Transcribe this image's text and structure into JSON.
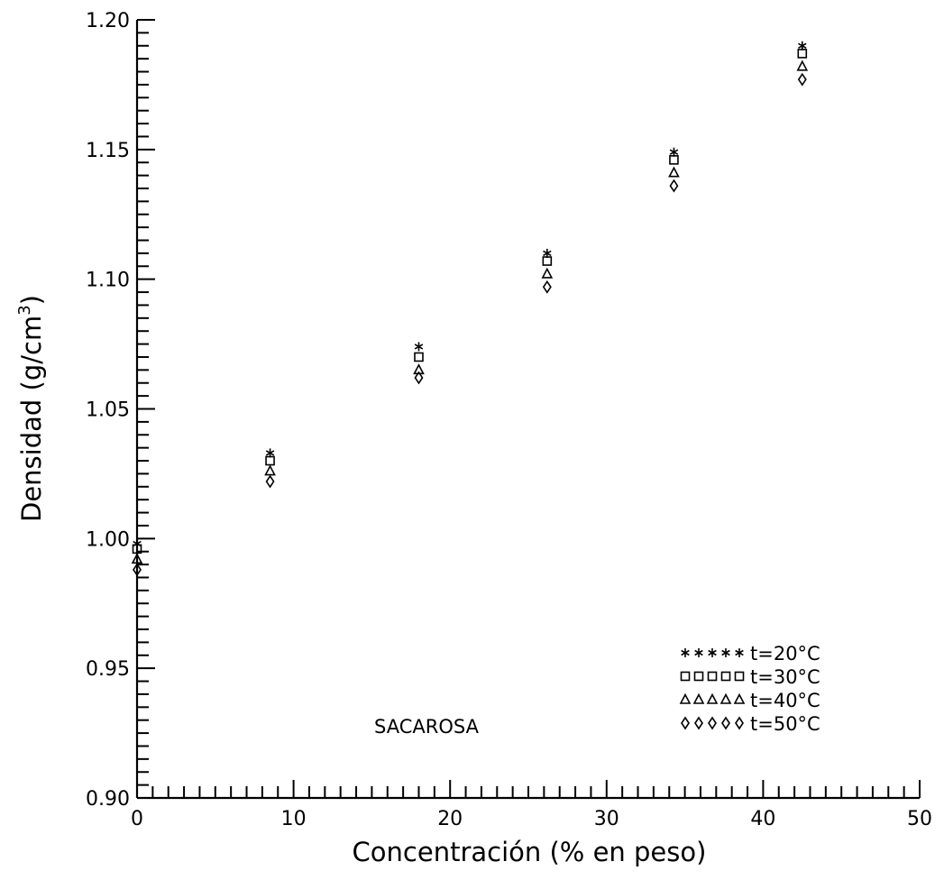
{
  "chart_data": {
    "type": "scatter",
    "title": "",
    "xlabel": "Concentración (% en peso)",
    "ylabel": "Densidad (g/cm",
    "ylabel_sup": "3",
    "ylabel_close": ")",
    "annotation": "SACAROSA",
    "xlim": [
      0,
      50
    ],
    "ylim": [
      0.9,
      1.2
    ],
    "x_ticks": [
      0,
      10,
      20,
      30,
      40,
      50
    ],
    "x_tick_labels": [
      "0",
      "10",
      "20",
      "30",
      "40",
      "50"
    ],
    "y_ticks": [
      0.9,
      0.95,
      1.0,
      1.05,
      1.1,
      1.15,
      1.2
    ],
    "y_tick_labels": [
      "0.90",
      "0.95",
      "1.00",
      "1.05",
      "1.10",
      "1.15",
      "1.20"
    ],
    "grid": false,
    "legend_position": "bottom-right",
    "series": [
      {
        "name": "t=20°C",
        "marker": "asterisk",
        "legend_symbols": "∗∗∗∗∗",
        "x": [
          0,
          8.5,
          18,
          26.2,
          34.3,
          42.5
        ],
        "y": [
          0.998,
          1.033,
          1.074,
          1.11,
          1.149,
          1.19
        ]
      },
      {
        "name": "t=30°C",
        "marker": "square",
        "legend_symbols": "□□□□□",
        "x": [
          0,
          8.5,
          18,
          26.2,
          34.3,
          42.5
        ],
        "y": [
          0.996,
          1.03,
          1.07,
          1.107,
          1.146,
          1.187
        ]
      },
      {
        "name": "t=40°C",
        "marker": "triangle",
        "legend_symbols": "△△△△△",
        "x": [
          0,
          8.5,
          18,
          26.2,
          34.3,
          42.5
        ],
        "y": [
          0.992,
          1.026,
          1.065,
          1.102,
          1.141,
          1.182
        ]
      },
      {
        "name": "t=50°C",
        "marker": "diamond",
        "legend_symbols": "◊◊◊◊◊",
        "x": [
          0,
          8.5,
          18,
          26.2,
          34.3,
          42.5
        ],
        "y": [
          0.988,
          1.022,
          1.062,
          1.097,
          1.136,
          1.177
        ]
      }
    ]
  }
}
